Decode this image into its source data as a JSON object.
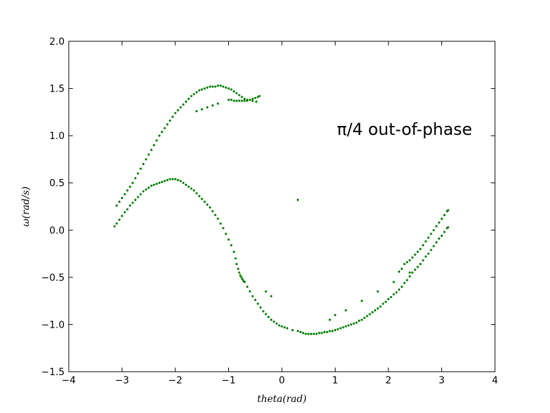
{
  "chart_data": {
    "type": "scatter",
    "title": "",
    "xlabel": "theta(rad)",
    "ylabel": "ω(rad/s)",
    "xlim": [
      -4,
      4
    ],
    "ylim": [
      -1.5,
      2.0
    ],
    "x_ticks": [
      -4,
      -3,
      -2,
      -1,
      0,
      1,
      2,
      3,
      4
    ],
    "x_tick_labels": [
      "−4",
      "−3",
      "−2",
      "−1",
      "0",
      "1",
      "2",
      "3",
      "4"
    ],
    "y_ticks": [
      -1.5,
      -1.0,
      -0.5,
      0.0,
      0.5,
      1.0,
      1.5,
      2.0
    ],
    "y_tick_labels": [
      "−1.5",
      "−1.0",
      "−0.5",
      "0.0",
      "0.5",
      "1.0",
      "1.5",
      "2.0"
    ],
    "grid": false,
    "annotation": "π/4 out-of-phase",
    "marker_color": "#008000",
    "series": [
      {
        "points": [
          [
            -3.14,
            0.04
          ],
          [
            -3.1,
            0.07
          ],
          [
            -3.05,
            0.11
          ],
          [
            -3.0,
            0.15
          ],
          [
            -2.95,
            0.19
          ],
          [
            -2.9,
            0.22
          ],
          [
            -2.85,
            0.26
          ],
          [
            -2.8,
            0.29
          ],
          [
            -2.75,
            0.32
          ],
          [
            -2.7,
            0.35
          ],
          [
            -2.65,
            0.38
          ],
          [
            -2.6,
            0.41
          ],
          [
            -2.55,
            0.43
          ],
          [
            -2.5,
            0.45
          ],
          [
            -2.45,
            0.47
          ],
          [
            -2.4,
            0.48
          ],
          [
            -2.35,
            0.49
          ],
          [
            -2.3,
            0.5
          ],
          [
            -2.25,
            0.51
          ],
          [
            -2.2,
            0.52
          ],
          [
            -2.15,
            0.53
          ],
          [
            -2.1,
            0.54
          ],
          [
            -2.05,
            0.54
          ],
          [
            -2.0,
            0.54
          ],
          [
            -1.95,
            0.53
          ],
          [
            -1.9,
            0.52
          ],
          [
            -1.85,
            0.5
          ],
          [
            -1.8,
            0.48
          ],
          [
            -1.75,
            0.46
          ],
          [
            -1.7,
            0.44
          ],
          [
            -1.65,
            0.42
          ],
          [
            -1.6,
            0.39
          ],
          [
            -1.55,
            0.36
          ],
          [
            -1.5,
            0.33
          ],
          [
            -1.45,
            0.3
          ],
          [
            -1.4,
            0.27
          ],
          [
            -1.35,
            0.24
          ],
          [
            -1.3,
            0.2
          ],
          [
            -1.25,
            0.16
          ],
          [
            -1.2,
            0.12
          ],
          [
            -1.15,
            0.07
          ],
          [
            -1.1,
            0.02
          ],
          [
            -1.05,
            -0.04
          ],
          [
            -1.0,
            -0.1
          ],
          [
            -0.95,
            -0.16
          ],
          [
            -0.9,
            -0.23
          ],
          [
            -0.87,
            -0.3
          ],
          [
            -0.85,
            -0.36
          ],
          [
            -0.82,
            -0.41
          ],
          [
            -0.8,
            -0.45
          ],
          [
            -0.78,
            -0.48
          ],
          [
            -0.76,
            -0.5
          ],
          [
            -0.74,
            -0.52
          ],
          [
            -0.72,
            -0.54
          ],
          [
            -0.7,
            -0.55
          ],
          [
            -0.65,
            -0.6
          ],
          [
            -0.6,
            -0.65
          ],
          [
            -0.55,
            -0.7
          ],
          [
            -0.5,
            -0.74
          ],
          [
            -0.45,
            -0.78
          ],
          [
            -0.4,
            -0.82
          ],
          [
            -0.35,
            -0.86
          ],
          [
            -0.3,
            -0.89
          ],
          [
            -0.25,
            -0.92
          ],
          [
            -0.2,
            -0.95
          ],
          [
            -0.15,
            -0.97
          ],
          [
            -0.1,
            -0.99
          ],
          [
            -0.05,
            -1.01
          ],
          [
            0.0,
            -1.02
          ],
          [
            0.05,
            -1.03
          ],
          [
            0.1,
            -1.04
          ],
          [
            0.2,
            -1.06
          ],
          [
            0.3,
            -1.07
          ],
          [
            0.35,
            -1.08
          ],
          [
            0.4,
            -1.09
          ],
          [
            0.45,
            -1.1
          ],
          [
            0.5,
            -1.1
          ],
          [
            0.55,
            -1.1
          ],
          [
            0.6,
            -1.1
          ],
          [
            0.65,
            -1.1
          ],
          [
            0.7,
            -1.09
          ],
          [
            0.75,
            -1.09
          ],
          [
            0.8,
            -1.08
          ],
          [
            0.85,
            -1.08
          ],
          [
            0.9,
            -1.07
          ],
          [
            0.95,
            -1.07
          ],
          [
            1.0,
            -1.06
          ],
          [
            1.05,
            -1.05
          ],
          [
            1.1,
            -1.04
          ],
          [
            1.15,
            -1.03
          ],
          [
            1.2,
            -1.02
          ],
          [
            1.25,
            -1.01
          ],
          [
            1.3,
            -1.0
          ],
          [
            1.35,
            -0.99
          ],
          [
            1.4,
            -0.98
          ],
          [
            1.45,
            -0.96
          ],
          [
            1.5,
            -0.95
          ],
          [
            1.55,
            -0.93
          ],
          [
            1.6,
            -0.91
          ],
          [
            1.65,
            -0.89
          ],
          [
            1.7,
            -0.87
          ],
          [
            1.75,
            -0.85
          ],
          [
            1.8,
            -0.83
          ],
          [
            1.85,
            -0.81
          ],
          [
            1.9,
            -0.78
          ],
          [
            1.95,
            -0.76
          ],
          [
            2.0,
            -0.73
          ],
          [
            2.05,
            -0.71
          ],
          [
            2.1,
            -0.68
          ],
          [
            2.15,
            -0.66
          ],
          [
            2.2,
            -0.63
          ],
          [
            2.25,
            -0.6
          ],
          [
            2.3,
            -0.56
          ],
          [
            2.35,
            -0.53
          ],
          [
            2.4,
            -0.49
          ],
          [
            2.45,
            -0.45
          ],
          [
            2.5,
            -0.42
          ],
          [
            2.55,
            -0.39
          ],
          [
            2.6,
            -0.36
          ],
          [
            2.65,
            -0.32
          ],
          [
            2.7,
            -0.28
          ],
          [
            2.75,
            -0.25
          ],
          [
            2.8,
            -0.21
          ],
          [
            2.85,
            -0.17
          ],
          [
            2.9,
            -0.13
          ],
          [
            2.95,
            -0.09
          ],
          [
            3.0,
            -0.06
          ],
          [
            3.05,
            -0.02
          ],
          [
            3.1,
            0.02
          ],
          [
            3.12,
            0.03
          ],
          [
            2.85,
            0.0
          ],
          [
            2.9,
            0.04
          ],
          [
            2.95,
            0.08
          ],
          [
            3.0,
            0.12
          ],
          [
            3.05,
            0.16
          ],
          [
            3.1,
            0.2
          ],
          [
            3.12,
            0.21
          ],
          [
            2.8,
            -0.04
          ],
          [
            2.75,
            -0.08
          ],
          [
            2.7,
            -0.12
          ],
          [
            2.65,
            -0.16
          ],
          [
            2.6,
            -0.2
          ],
          [
            2.55,
            -0.23
          ],
          [
            2.5,
            -0.26
          ],
          [
            2.45,
            -0.29
          ],
          [
            2.4,
            -0.32
          ],
          [
            2.35,
            -0.34
          ],
          [
            2.3,
            -0.36
          ],
          [
            2.25,
            -0.41
          ],
          [
            2.2,
            -0.44
          ],
          [
            -3.1,
            0.26
          ],
          [
            -3.05,
            0.3
          ],
          [
            -3.0,
            0.34
          ],
          [
            -2.95,
            0.38
          ],
          [
            -2.9,
            0.42
          ],
          [
            -2.85,
            0.46
          ],
          [
            -2.8,
            0.5
          ],
          [
            -2.75,
            0.55
          ],
          [
            -2.7,
            0.6
          ],
          [
            -2.65,
            0.65
          ],
          [
            -2.6,
            0.7
          ],
          [
            -2.55,
            0.75
          ],
          [
            -2.5,
            0.8
          ],
          [
            -2.45,
            0.85
          ],
          [
            -2.4,
            0.9
          ],
          [
            -2.35,
            0.95
          ],
          [
            -2.3,
            1.0
          ],
          [
            -2.25,
            1.04
          ],
          [
            -2.2,
            1.08
          ],
          [
            -2.15,
            1.12
          ],
          [
            -2.1,
            1.16
          ],
          [
            -2.05,
            1.2
          ],
          [
            -2.0,
            1.24
          ],
          [
            -1.95,
            1.27
          ],
          [
            -1.9,
            1.3
          ],
          [
            -1.85,
            1.33
          ],
          [
            -1.8,
            1.36
          ],
          [
            -1.75,
            1.39
          ],
          [
            -1.7,
            1.42
          ],
          [
            -1.65,
            1.44
          ],
          [
            -1.6,
            1.46
          ],
          [
            -1.55,
            1.48
          ],
          [
            -1.5,
            1.49
          ],
          [
            -1.45,
            1.5
          ],
          [
            -1.4,
            1.51
          ],
          [
            -1.35,
            1.52
          ],
          [
            -1.3,
            1.52
          ],
          [
            -1.25,
            1.52
          ],
          [
            -1.2,
            1.53
          ],
          [
            -1.15,
            1.53
          ],
          [
            -1.1,
            1.52
          ],
          [
            -1.05,
            1.51
          ],
          [
            -1.0,
            1.5
          ],
          [
            -0.95,
            1.49
          ],
          [
            -0.9,
            1.47
          ],
          [
            -0.85,
            1.45
          ],
          [
            -0.8,
            1.43
          ],
          [
            -0.75,
            1.41
          ],
          [
            -0.7,
            1.39
          ],
          [
            -0.65,
            1.37
          ],
          [
            -1.0,
            1.38
          ],
          [
            -0.95,
            1.38
          ],
          [
            -0.9,
            1.37
          ],
          [
            -0.85,
            1.37
          ],
          [
            -0.8,
            1.37
          ],
          [
            -0.75,
            1.37
          ],
          [
            -0.7,
            1.37
          ],
          [
            -0.65,
            1.38
          ],
          [
            -0.6,
            1.38
          ],
          [
            -0.55,
            1.39
          ],
          [
            -0.5,
            1.4
          ],
          [
            -0.45,
            1.41
          ],
          [
            -0.42,
            1.42
          ],
          [
            -0.48,
            1.36
          ],
          [
            -0.55,
            1.37
          ],
          [
            -1.2,
            1.34
          ],
          [
            -1.3,
            1.32
          ],
          [
            -1.4,
            1.3
          ],
          [
            -1.5,
            1.28
          ],
          [
            -1.6,
            1.26
          ],
          [
            0.3,
            0.32
          ],
          [
            -0.3,
            -0.65
          ],
          [
            -0.2,
            -0.7
          ],
          [
            0.9,
            -0.95
          ],
          [
            1.0,
            -0.9
          ],
          [
            1.2,
            -0.85
          ],
          [
            1.5,
            -0.75
          ],
          [
            1.8,
            -0.65
          ],
          [
            2.1,
            -0.55
          ],
          [
            2.4,
            -0.45
          ]
        ]
      }
    ]
  }
}
